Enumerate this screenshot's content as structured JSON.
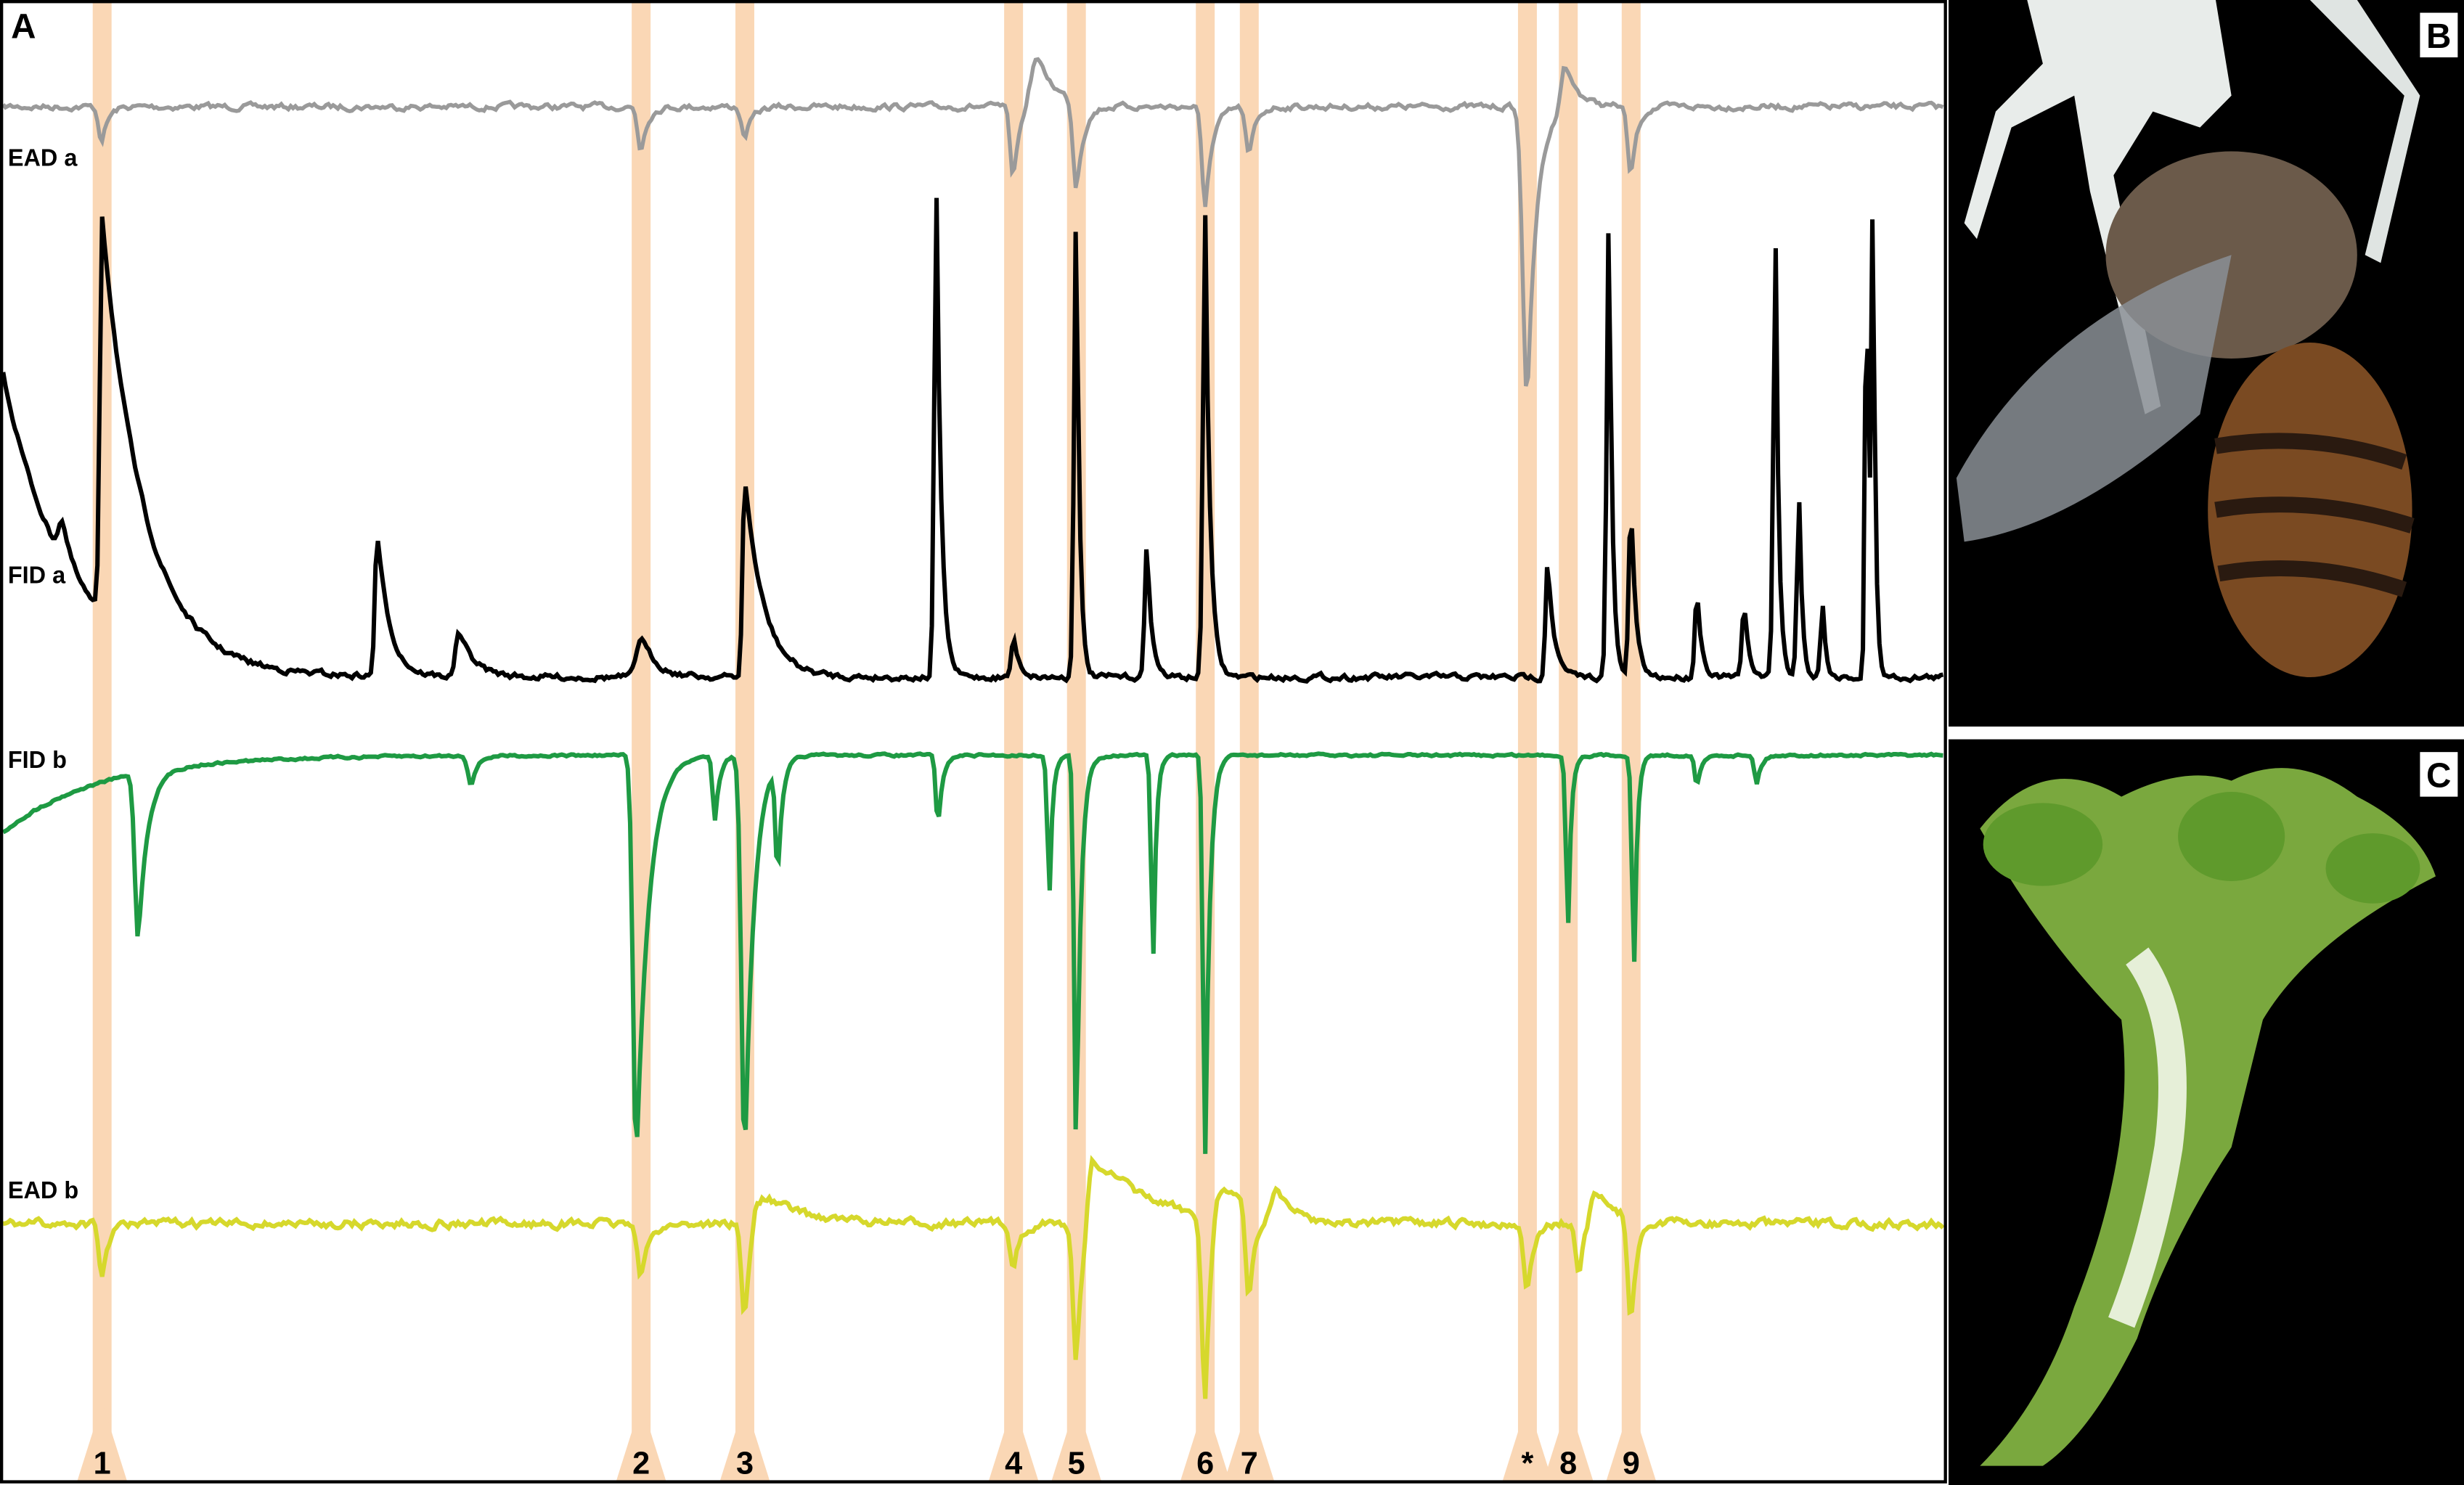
{
  "panels": [
    {
      "label": "A"
    },
    {
      "label": "B"
    },
    {
      "label": "C"
    }
  ],
  "traces": [
    {
      "label": "EAD a"
    },
    {
      "label": "FID a"
    },
    {
      "label": "FID b"
    },
    {
      "label": "EAD b"
    }
  ],
  "peaks": [
    {
      "label": "1"
    },
    {
      "label": "2"
    },
    {
      "label": "3"
    },
    {
      "label": "4"
    },
    {
      "label": "5"
    },
    {
      "label": "6"
    },
    {
      "label": "7"
    },
    {
      "label": "*"
    },
    {
      "label": "8"
    },
    {
      "label": "9"
    }
  ]
}
